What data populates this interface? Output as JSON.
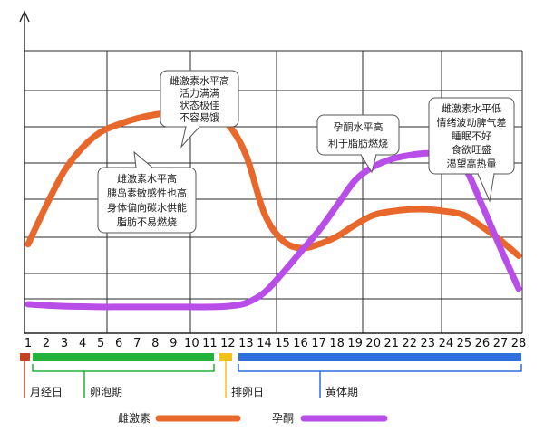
{
  "chart_data": {
    "type": "line",
    "title": "",
    "xlabel": "",
    "ylabel": "",
    "x": [
      1,
      2,
      3,
      4,
      5,
      6,
      7,
      8,
      9,
      10,
      11,
      12,
      13,
      14,
      15,
      16,
      17,
      18,
      19,
      20,
      21,
      22,
      23,
      24,
      25,
      26,
      27,
      28
    ],
    "xlim": [
      1,
      28
    ],
    "ylim": [
      0,
      7.3
    ],
    "grid": true,
    "legend_position": "bottom",
    "series": [
      {
        "name": "雌激素",
        "color": "#e8672a",
        "values": [
          2.3,
          3.3,
          4.2,
          4.8,
          5.2,
          5.4,
          5.55,
          5.65,
          5.7,
          5.75,
          5.7,
          5.4,
          4.6,
          3.1,
          2.4,
          2.2,
          2.3,
          2.5,
          2.8,
          3.05,
          3.15,
          3.2,
          3.2,
          3.15,
          3.05,
          2.75,
          2.4,
          2.0
        ]
      },
      {
        "name": "孕酮",
        "color": "#b84de8",
        "values": [
          0.75,
          0.72,
          0.7,
          0.69,
          0.68,
          0.68,
          0.68,
          0.68,
          0.68,
          0.68,
          0.68,
          0.7,
          0.78,
          1.05,
          1.55,
          2.1,
          2.65,
          3.3,
          3.95,
          4.3,
          4.5,
          4.6,
          4.65,
          4.6,
          4.3,
          3.3,
          2.2,
          1.15
        ]
      }
    ],
    "annotations": [
      {
        "id": "peak",
        "lines": [
          "雌激素水平高",
          "活力满满",
          "状态极佳",
          "不容易饿"
        ]
      },
      {
        "id": "insulin",
        "lines": [
          "雌激素水平高",
          "胰岛素敏感性也高",
          "身体偏向碳水供能",
          "脂肪不易燃烧"
        ]
      },
      {
        "id": "progesterone",
        "lines": [
          "孕酮水平高",
          "利于脂肪燃烧"
        ]
      },
      {
        "id": "lowestrogen",
        "lines": [
          "雌激素水平低",
          "情绪波动脾气差",
          "睡眠不好",
          "食欲旺盛",
          "渴望高热量"
        ]
      }
    ],
    "phases": [
      {
        "id": "menstruation",
        "label": "月经日",
        "start_day": 1,
        "end_day": 1,
        "color": "#c8401e"
      },
      {
        "id": "follicular",
        "label": "卵泡期",
        "start_day": 2,
        "end_day": 13,
        "color": "#22b33a"
      },
      {
        "id": "ovulation",
        "label": "排卵日",
        "start_day": 14,
        "end_day": 14,
        "color": "#f2c21b"
      },
      {
        "id": "luteal",
        "label": "黄体期",
        "start_day": 15,
        "end_day": 28,
        "color": "#2f6fe0"
      }
    ]
  }
}
